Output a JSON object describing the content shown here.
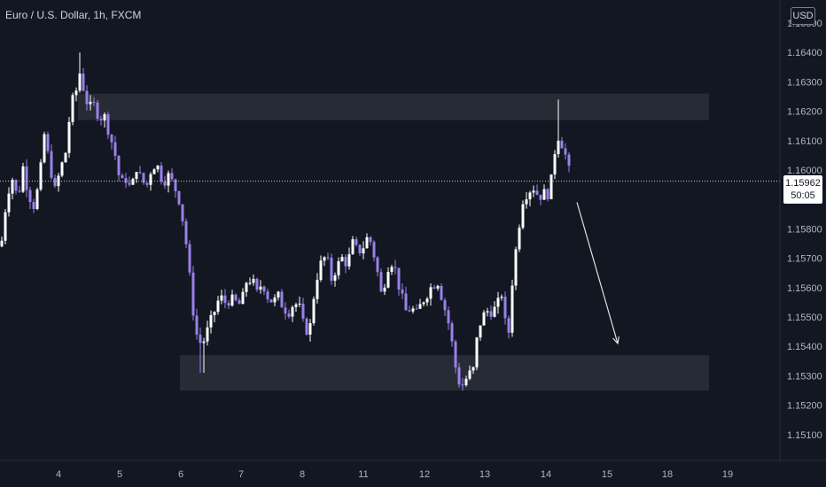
{
  "title": "Euro / U.S. Dollar, 1h, FXCM",
  "currency": "USD",
  "current_price": "1.15962",
  "countdown": "50:05",
  "colors": {
    "background": "#131722",
    "bull": "#ffffff",
    "bear": "#9a80e8",
    "zone": "#2a2d38",
    "axis_text": "#b2b5be",
    "arrow": "#e0e0e0"
  },
  "chart_data": {
    "type": "candlestick",
    "instrument": "Euro / U.S. Dollar",
    "timeframe": "1h",
    "source": "FXCM",
    "y_ticks": [
      "1.15100",
      "1.15200",
      "1.15300",
      "1.15400",
      "1.15500",
      "1.15600",
      "1.15700",
      "1.15800",
      "1.15900",
      "1.16000",
      "1.16100",
      "1.16200",
      "1.16300",
      "1.16400",
      "1.16500"
    ],
    "x_ticks": [
      "4",
      "5",
      "6",
      "7",
      "8",
      "11",
      "12",
      "13",
      "14",
      "15",
      "18",
      "19"
    ],
    "ylim": [
      1.1503,
      1.1655
    ],
    "last_price": 1.15962,
    "grid": false,
    "zones": [
      {
        "low": 1.1617,
        "high": 1.1626
      },
      {
        "low": 1.1525,
        "high": 1.1537
      }
    ],
    "arrow_direction": "down",
    "close_path": [
      [
        0,
        1.1576
      ],
      [
        6,
        1.1592
      ],
      [
        12,
        1.1597
      ],
      [
        18,
        1.159
      ],
      [
        24,
        1.1601
      ],
      [
        30,
        1.1592
      ],
      [
        36,
        1.1588
      ],
      [
        42,
        1.1595
      ],
      [
        48,
        1.1612
      ],
      [
        54,
        1.1602
      ],
      [
        60,
        1.1593
      ],
      [
        66,
        1.16
      ],
      [
        72,
        1.1606
      ],
      [
        78,
        1.1622
      ],
      [
        84,
        1.1627
      ],
      [
        88,
        1.1633
      ],
      [
        92,
        1.1628
      ],
      [
        98,
        1.1621
      ],
      [
        104,
        1.1622
      ],
      [
        110,
        1.1618
      ],
      [
        116,
        1.1618
      ],
      [
        122,
        1.1612
      ],
      [
        128,
        1.1605
      ],
      [
        134,
        1.1595
      ],
      [
        140,
        1.1597
      ],
      [
        146,
        1.1593
      ],
      [
        152,
        1.1601
      ],
      [
        158,
        1.1596
      ],
      [
        164,
        1.1595
      ],
      [
        170,
        1.1602
      ],
      [
        176,
        1.1601
      ],
      [
        182,
        1.1596
      ],
      [
        188,
        1.1598
      ],
      [
        194,
        1.1595
      ],
      [
        200,
        1.159
      ],
      [
        206,
        1.158
      ],
      [
        210,
        1.157
      ],
      [
        214,
        1.1557
      ],
      [
        218,
        1.1547
      ],
      [
        222,
        1.1541
      ],
      [
        228,
        1.1542
      ],
      [
        234,
        1.1547
      ],
      [
        240,
        1.1552
      ],
      [
        246,
        1.1557
      ],
      [
        252,
        1.1555
      ],
      [
        258,
        1.1556
      ],
      [
        264,
        1.1555
      ],
      [
        270,
        1.1554
      ],
      [
        276,
        1.1562
      ],
      [
        282,
        1.1563
      ],
      [
        288,
        1.1558
      ],
      [
        294,
        1.1562
      ],
      [
        300,
        1.1557
      ],
      [
        306,
        1.1555
      ],
      [
        312,
        1.1557
      ],
      [
        318,
        1.1553
      ],
      [
        324,
        1.1552
      ],
      [
        330,
        1.1555
      ],
      [
        336,
        1.1553
      ],
      [
        342,
        1.1545
      ],
      [
        348,
        1.1547
      ],
      [
        354,
        1.1562
      ],
      [
        360,
        1.1568
      ],
      [
        366,
        1.1571
      ],
      [
        372,
        1.1563
      ],
      [
        378,
        1.1567
      ],
      [
        384,
        1.157
      ],
      [
        390,
        1.1568
      ],
      [
        396,
        1.1575
      ],
      [
        402,
        1.1572
      ],
      [
        408,
        1.1574
      ],
      [
        414,
        1.1578
      ],
      [
        420,
        1.1571
      ],
      [
        424,
        1.1565
      ],
      [
        428,
        1.1558
      ],
      [
        432,
        1.1562
      ],
      [
        438,
        1.157
      ],
      [
        444,
        1.1566
      ],
      [
        450,
        1.1558
      ],
      [
        456,
        1.1552
      ],
      [
        462,
        1.1553
      ],
      [
        468,
        1.1551
      ],
      [
        474,
        1.1555
      ],
      [
        480,
        1.1558
      ],
      [
        486,
        1.1561
      ],
      [
        492,
        1.1562
      ],
      [
        498,
        1.1555
      ],
      [
        504,
        1.1548
      ],
      [
        508,
        1.1541
      ],
      [
        512,
        1.1533
      ],
      [
        516,
        1.1528
      ],
      [
        520,
        1.1527
      ],
      [
        526,
        1.153
      ],
      [
        532,
        1.1532
      ],
      [
        536,
        1.1542
      ],
      [
        540,
        1.1548
      ],
      [
        546,
        1.1552
      ],
      [
        552,
        1.1552
      ],
      [
        558,
        1.1553
      ],
      [
        564,
        1.1558
      ],
      [
        568,
        1.1548
      ],
      [
        572,
        1.1545
      ],
      [
        576,
        1.1562
      ],
      [
        582,
        1.1578
      ],
      [
        588,
        1.159
      ],
      [
        594,
        1.1593
      ],
      [
        600,
        1.1594
      ],
      [
        606,
        1.1591
      ],
      [
        612,
        1.1592
      ],
      [
        618,
        1.1592
      ],
      [
        622,
        1.1601
      ],
      [
        626,
        1.1612
      ],
      [
        630,
        1.1611
      ],
      [
        636,
        1.1605
      ],
      [
        642,
        1.1597
      ]
    ],
    "extremes": [
      {
        "x": 88,
        "high": 1.164
      },
      {
        "x": 226,
        "low": 1.1531
      },
      {
        "x": 520,
        "low": 1.1525
      },
      {
        "x": 628,
        "high": 1.1624
      }
    ]
  }
}
